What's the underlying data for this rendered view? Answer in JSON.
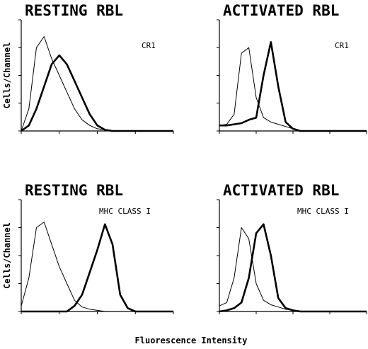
{
  "xlabel": "Fluorescence Intensity",
  "chart_data": [
    {
      "type": "line",
      "title": "RESTING RBL",
      "annotation": "CR1",
      "ylabel": "Cells/Channel",
      "x": [
        0,
        5,
        10,
        15,
        20,
        25,
        30,
        35,
        40,
        45,
        50,
        55,
        60,
        65,
        70,
        75,
        80,
        85,
        90,
        95,
        100
      ],
      "xlim": [
        0,
        100
      ],
      "ylim": [
        0,
        100
      ],
      "xticks": [
        0,
        25,
        50,
        75,
        100
      ],
      "yticks": [
        0,
        25,
        50,
        75,
        100
      ],
      "series": [
        {
          "color": "#000000",
          "line_width": 1,
          "values": [
            0,
            20,
            75,
            85,
            65,
            50,
            35,
            20,
            10,
            5,
            2,
            1,
            0,
            0,
            0,
            0,
            0,
            0,
            0,
            0,
            0
          ]
        },
        {
          "color": "#000000",
          "line_width": 2.6,
          "values": [
            0,
            5,
            20,
            40,
            60,
            68,
            60,
            45,
            30,
            15,
            5,
            1,
            0,
            0,
            0,
            0,
            0,
            0,
            0,
            0,
            0
          ]
        }
      ]
    },
    {
      "type": "line",
      "title": "ACTIVATED RBL",
      "annotation": "CR1",
      "x": [
        0,
        5,
        10,
        15,
        20,
        25,
        30,
        35,
        40,
        45,
        50,
        55,
        60,
        65,
        70,
        75,
        80,
        85,
        90,
        95,
        100
      ],
      "xlim": [
        0,
        100
      ],
      "ylim": [
        0,
        100
      ],
      "xticks": [
        0,
        25,
        50,
        75,
        100
      ],
      "yticks": [
        0,
        25,
        50,
        75,
        100
      ],
      "series": [
        {
          "color": "#000000",
          "line_width": 1,
          "values": [
            5,
            6,
            15,
            70,
            75,
            30,
            12,
            8,
            6,
            4,
            2,
            0,
            0,
            0,
            0,
            0,
            0,
            0,
            0,
            0,
            0
          ]
        },
        {
          "color": "#000000",
          "line_width": 2.6,
          "values": [
            5,
            5,
            6,
            7,
            10,
            12,
            50,
            80,
            40,
            8,
            2,
            0,
            0,
            0,
            0,
            0,
            0,
            0,
            0,
            0,
            0
          ]
        }
      ]
    },
    {
      "type": "line",
      "title": "RESTING RBL",
      "annotation": "MHC CLASS I",
      "ylabel": "Cells/Channel",
      "x": [
        0,
        5,
        10,
        15,
        20,
        25,
        30,
        35,
        40,
        45,
        50,
        55,
        60,
        65,
        70,
        75,
        80,
        85,
        90,
        95,
        100
      ],
      "xlim": [
        0,
        100
      ],
      "ylim": [
        0,
        100
      ],
      "xticks": [
        0,
        25,
        50,
        75,
        100
      ],
      "yticks": [
        0,
        25,
        50,
        75,
        100
      ],
      "series": [
        {
          "color": "#000000",
          "line_width": 1,
          "values": [
            5,
            30,
            75,
            80,
            60,
            40,
            25,
            10,
            4,
            2,
            1,
            0,
            0,
            0,
            0,
            0,
            0,
            0,
            0,
            0,
            0
          ]
        },
        {
          "color": "#000000",
          "line_width": 2.6,
          "values": [
            0,
            0,
            0,
            0,
            0,
            0,
            0,
            5,
            15,
            35,
            55,
            78,
            60,
            15,
            3,
            0,
            0,
            0,
            0,
            0,
            0
          ]
        }
      ]
    },
    {
      "type": "line",
      "title": "ACTIVATED RBL",
      "annotation": "MHC CLASS I",
      "x": [
        0,
        5,
        10,
        15,
        20,
        25,
        30,
        35,
        40,
        45,
        50,
        55,
        60,
        65,
        70,
        75,
        80,
        85,
        90,
        95,
        100
      ],
      "xlim": [
        0,
        100
      ],
      "ylim": [
        0,
        100
      ],
      "xticks": [
        0,
        25,
        50,
        75,
        100
      ],
      "yticks": [
        0,
        25,
        50,
        75,
        100
      ],
      "series": [
        {
          "color": "#000000",
          "line_width": 1,
          "values": [
            5,
            8,
            30,
            75,
            65,
            25,
            10,
            6,
            4,
            2,
            1,
            0,
            0,
            0,
            0,
            0,
            0,
            0,
            0,
            0,
            0
          ]
        },
        {
          "color": "#000000",
          "line_width": 2.6,
          "values": [
            0,
            1,
            3,
            8,
            30,
            70,
            78,
            50,
            12,
            3,
            1,
            0,
            0,
            0,
            0,
            0,
            0,
            0,
            0,
            0,
            0
          ]
        }
      ]
    }
  ]
}
